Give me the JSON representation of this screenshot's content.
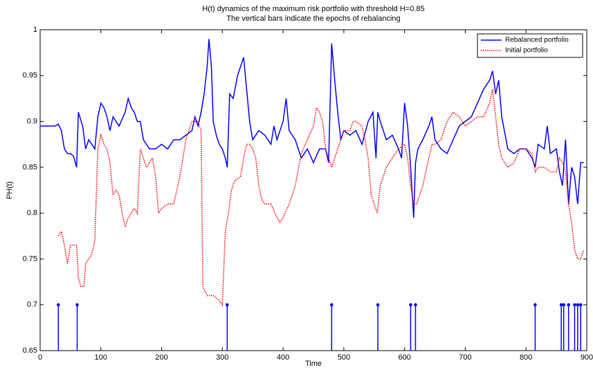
{
  "chart_data": {
    "type": "line",
    "title": "H(t) dynamics of the maximum risk portfolio with threshold H=0.85",
    "subtitle": "The vertical bars indicate the epochs of rebalancing",
    "xlabel": "Time",
    "ylabel": "PH(t)",
    "xlim": [
      0,
      900
    ],
    "ylim": [
      0.65,
      1
    ],
    "xticks": [
      0,
      100,
      200,
      300,
      400,
      500,
      600,
      700,
      800,
      900
    ],
    "yticks": [
      0.65,
      0.7,
      0.75,
      0.8,
      0.85,
      0.9,
      0.95,
      1
    ],
    "legend": "northeast",
    "series": [
      {
        "name": "Rebalanced portfolio",
        "color": "#0000ff",
        "dash": "solid",
        "x": [
          0,
          25,
          30,
          35,
          40,
          45,
          50,
          55,
          60,
          63,
          70,
          75,
          80,
          85,
          90,
          95,
          100,
          105,
          110,
          115,
          120,
          125,
          130,
          140,
          145,
          150,
          155,
          160,
          165,
          170,
          180,
          190,
          200,
          210,
          220,
          230,
          240,
          250,
          255,
          260,
          265,
          270,
          275,
          278,
          282,
          285,
          290,
          295,
          300,
          305,
          308,
          312,
          318,
          325,
          330,
          335,
          340,
          345,
          350,
          360,
          370,
          380,
          385,
          390,
          400,
          405,
          410,
          420,
          430,
          440,
          450,
          460,
          470,
          475,
          480,
          485,
          490,
          495,
          500,
          510,
          520,
          530,
          540,
          548,
          553,
          556,
          560,
          570,
          580,
          590,
          595,
          600,
          605,
          610,
          615,
          618,
          622,
          630,
          640,
          645,
          650,
          660,
          670,
          680,
          690,
          700,
          710,
          720,
          730,
          740,
          745,
          750,
          755,
          760,
          770,
          780,
          790,
          800,
          810,
          815,
          820,
          830,
          835,
          840,
          850,
          855,
          860,
          865,
          870,
          875,
          880,
          885,
          890,
          895
        ],
        "values": [
          0.895,
          0.895,
          0.897,
          0.89,
          0.87,
          0.865,
          0.865,
          0.862,
          0.85,
          0.91,
          0.895,
          0.87,
          0.88,
          0.875,
          0.87,
          0.905,
          0.92,
          0.915,
          0.905,
          0.89,
          0.905,
          0.9,
          0.895,
          0.91,
          0.925,
          0.915,
          0.91,
          0.9,
          0.9,
          0.88,
          0.87,
          0.87,
          0.875,
          0.87,
          0.88,
          0.88,
          0.885,
          0.89,
          0.905,
          0.895,
          0.91,
          0.93,
          0.96,
          0.99,
          0.96,
          0.9,
          0.885,
          0.875,
          0.87,
          0.86,
          0.85,
          0.93,
          0.925,
          0.95,
          0.96,
          0.97,
          0.935,
          0.9,
          0.88,
          0.89,
          0.885,
          0.875,
          0.895,
          0.88,
          0.9,
          0.925,
          0.89,
          0.88,
          0.86,
          0.87,
          0.855,
          0.87,
          0.87,
          0.855,
          0.985,
          0.945,
          0.91,
          0.88,
          0.89,
          0.885,
          0.89,
          0.875,
          0.9,
          0.91,
          0.86,
          0.91,
          0.9,
          0.88,
          0.885,
          0.87,
          0.86,
          0.92,
          0.895,
          0.85,
          0.795,
          0.855,
          0.87,
          0.88,
          0.895,
          0.905,
          0.88,
          0.87,
          0.865,
          0.88,
          0.895,
          0.9,
          0.905,
          0.92,
          0.935,
          0.945,
          0.955,
          0.93,
          0.945,
          0.905,
          0.87,
          0.865,
          0.87,
          0.87,
          0.86,
          0.85,
          0.875,
          0.87,
          0.895,
          0.865,
          0.87,
          0.845,
          0.83,
          0.88,
          0.81,
          0.85,
          0.84,
          0.81,
          0.855,
          0.855
        ]
      },
      {
        "name": "Initial portfolio",
        "color": "#ff0000",
        "dash": "dotted",
        "x": [
          30,
          35,
          40,
          45,
          50,
          55,
          60,
          63,
          67,
          72,
          75,
          80,
          85,
          90,
          95,
          100,
          105,
          110,
          115,
          120,
          125,
          130,
          135,
          140,
          145,
          150,
          155,
          160,
          165,
          170,
          175,
          180,
          185,
          190,
          195,
          200,
          210,
          220,
          230,
          240,
          250,
          260,
          265,
          268,
          275,
          285,
          295,
          300,
          305,
          310,
          315,
          320,
          330,
          335,
          340,
          345,
          350,
          355,
          360,
          365,
          370,
          380,
          390,
          395,
          400,
          410,
          420,
          430,
          440,
          450,
          455,
          460,
          465,
          470,
          475,
          480,
          490,
          500,
          510,
          515,
          520,
          530,
          535,
          540,
          545,
          550,
          555,
          560,
          570,
          580,
          590,
          600,
          605,
          610,
          615,
          620,
          630,
          640,
          645,
          650,
          660,
          670,
          680,
          690,
          700,
          710,
          720,
          730,
          740,
          745,
          750,
          755,
          760,
          770,
          780,
          790,
          800,
          810,
          815,
          820,
          830,
          840,
          850,
          855,
          860,
          865,
          870,
          875,
          880,
          885,
          890,
          895
        ],
        "values": [
          0.775,
          0.78,
          0.765,
          0.745,
          0.765,
          0.765,
          0.765,
          0.73,
          0.72,
          0.72,
          0.745,
          0.75,
          0.755,
          0.77,
          0.87,
          0.885,
          0.875,
          0.87,
          0.855,
          0.82,
          0.825,
          0.82,
          0.8,
          0.785,
          0.795,
          0.8,
          0.805,
          0.8,
          0.87,
          0.86,
          0.85,
          0.855,
          0.86,
          0.84,
          0.8,
          0.805,
          0.81,
          0.81,
          0.84,
          0.88,
          0.9,
          0.9,
          0.89,
          0.72,
          0.71,
          0.71,
          0.705,
          0.7,
          0.78,
          0.8,
          0.825,
          0.835,
          0.84,
          0.86,
          0.875,
          0.875,
          0.87,
          0.86,
          0.83,
          0.815,
          0.81,
          0.81,
          0.795,
          0.79,
          0.795,
          0.81,
          0.83,
          0.865,
          0.88,
          0.895,
          0.915,
          0.91,
          0.9,
          0.87,
          0.86,
          0.85,
          0.87,
          0.89,
          0.89,
          0.9,
          0.9,
          0.895,
          0.88,
          0.86,
          0.82,
          0.81,
          0.8,
          0.83,
          0.85,
          0.86,
          0.87,
          0.875,
          0.86,
          0.83,
          0.81,
          0.81,
          0.83,
          0.86,
          0.875,
          0.875,
          0.88,
          0.9,
          0.91,
          0.905,
          0.895,
          0.9,
          0.905,
          0.905,
          0.92,
          0.935,
          0.905,
          0.875,
          0.86,
          0.85,
          0.855,
          0.87,
          0.87,
          0.865,
          0.845,
          0.85,
          0.85,
          0.845,
          0.845,
          0.86,
          0.855,
          0.845,
          0.81,
          0.79,
          0.76,
          0.75,
          0.75,
          0.76
        ]
      }
    ],
    "stems": {
      "color": "#0000ff",
      "base": 0.65,
      "x": [
        30,
        61,
        308,
        480,
        556,
        610,
        618,
        815,
        858,
        862,
        870,
        880,
        885,
        890
      ],
      "values": [
        0.7,
        0.7,
        0.7,
        0.7,
        0.7,
        0.7,
        0.7,
        0.7,
        0.7,
        0.7,
        0.7,
        0.7,
        0.7,
        0.7
      ]
    }
  }
}
